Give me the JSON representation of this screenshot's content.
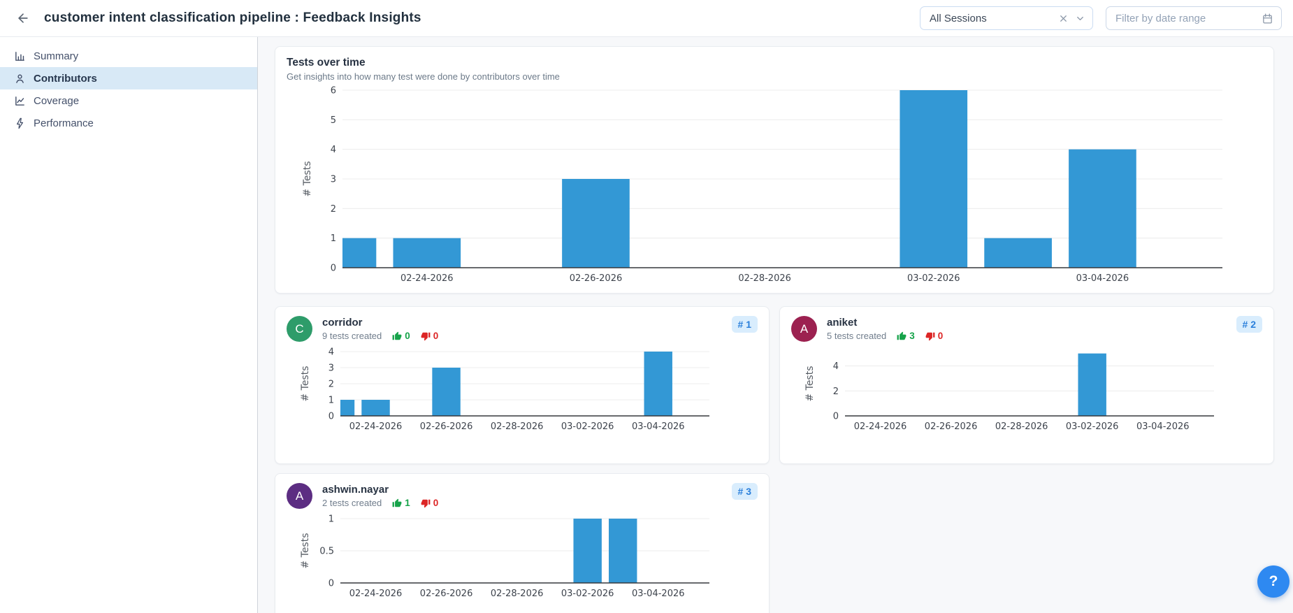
{
  "header": {
    "title": "customer intent classification pipeline : Feedback Insights",
    "session_filter": {
      "value": "All Sessions"
    },
    "date_filter": {
      "placeholder": "Filter by date range"
    }
  },
  "sidebar": {
    "items": [
      {
        "label": "Summary",
        "icon": "bar-chart"
      },
      {
        "label": "Contributors",
        "icon": "person",
        "active": true
      },
      {
        "label": "Coverage",
        "icon": "line-chart"
      },
      {
        "label": "Performance",
        "icon": "lightning"
      }
    ]
  },
  "main_card": {
    "title": "Tests over time",
    "subtitle": "Get insights into how many test were done by contributors over time"
  },
  "contributors": [
    {
      "initial": "C",
      "avatar_color": "#2e9c6a",
      "name": "corridor",
      "tests_created_label": "9 tests created",
      "thumbs_up": "0",
      "thumbs_down": "0",
      "rank_label": "# 1"
    },
    {
      "initial": "A",
      "avatar_color": "#9c2150",
      "name": "aniket",
      "tests_created_label": "5 tests created",
      "thumbs_up": "3",
      "thumbs_down": "0",
      "rank_label": "# 2"
    },
    {
      "initial": "A",
      "avatar_color": "#5c2d82",
      "name": "ashwin.nayar",
      "tests_created_label": "2 tests created",
      "thumbs_up": "1",
      "thumbs_down": "0",
      "rank_label": "# 3"
    }
  ],
  "help_button": {
    "label": "?"
  },
  "chart_data": [
    {
      "id": "tests-over-time",
      "type": "bar",
      "title": "Tests over time",
      "xlabel": "",
      "ylabel": "# Tests",
      "ylim": [
        0,
        6
      ],
      "yticks": [
        0,
        1,
        2,
        3,
        4,
        5,
        6
      ],
      "grid": true,
      "legend_position": "none",
      "bar_color": "#3398d5",
      "x_domain_days": [
        0,
        10.42
      ],
      "x_tick_labels": [
        "02-24-2026",
        "02-26-2026",
        "02-28-2026",
        "03-02-2026",
        "03-04-2026"
      ],
      "x_tick_days": [
        1,
        3,
        5,
        7,
        9
      ],
      "bars": [
        {
          "date": "02-23-2026",
          "day": 0,
          "value": 1
        },
        {
          "date": "02-24-2026",
          "day": 1,
          "value": 1
        },
        {
          "date": "02-26-2026",
          "day": 3,
          "value": 3
        },
        {
          "date": "03-02-2026",
          "day": 7,
          "value": 6
        },
        {
          "date": "03-03-2026",
          "day": 8,
          "value": 1
        },
        {
          "date": "03-04-2026",
          "day": 9,
          "value": 4
        }
      ]
    },
    {
      "id": "corridor-tests",
      "type": "bar",
      "title": "corridor tests over time",
      "xlabel": "",
      "ylabel": "# Tests",
      "ylim": [
        0,
        4
      ],
      "yticks": [
        0,
        1,
        2,
        3,
        4
      ],
      "grid": true,
      "legend_position": "none",
      "bar_color": "#3398d5",
      "x_domain_days": [
        0,
        10.45
      ],
      "x_tick_labels": [
        "02-24-2026",
        "02-26-2026",
        "02-28-2026",
        "03-02-2026",
        "03-04-2026"
      ],
      "x_tick_days": [
        1,
        3,
        5,
        7,
        9
      ],
      "bars": [
        {
          "date": "02-23-2026",
          "day": 0,
          "value": 1
        },
        {
          "date": "02-24-2026",
          "day": 1,
          "value": 1
        },
        {
          "date": "02-26-2026",
          "day": 3,
          "value": 3
        },
        {
          "date": "03-04-2026",
          "day": 9,
          "value": 4
        }
      ]
    },
    {
      "id": "aniket-tests",
      "type": "bar",
      "title": "aniket tests over time",
      "xlabel": "",
      "ylabel": "# Tests",
      "ylim": [
        0,
        5.15
      ],
      "yticks": [
        0,
        2,
        4
      ],
      "grid": true,
      "legend_position": "none",
      "bar_color": "#3398d5",
      "x_domain_days": [
        0,
        10.45
      ],
      "x_tick_labels": [
        "02-24-2026",
        "02-26-2026",
        "02-28-2026",
        "03-02-2026",
        "03-04-2026"
      ],
      "x_tick_days": [
        1,
        3,
        5,
        7,
        9
      ],
      "bars": [
        {
          "date": "03-02-2026",
          "day": 7,
          "value": 5
        }
      ]
    },
    {
      "id": "ashwin-nayar-tests",
      "type": "bar",
      "title": "ashwin.nayar tests over time",
      "xlabel": "",
      "ylabel": "# Tests",
      "ylim": [
        0,
        1
      ],
      "yticks": [
        0,
        0.5,
        1
      ],
      "grid": true,
      "legend_position": "none",
      "bar_color": "#3398d5",
      "x_domain_days": [
        0,
        10.45
      ],
      "x_tick_labels": [
        "02-24-2026",
        "02-26-2026",
        "02-28-2026",
        "03-02-2026",
        "03-04-2026"
      ],
      "x_tick_days": [
        1,
        3,
        5,
        7,
        9
      ],
      "bars": [
        {
          "date": "03-02-2026",
          "day": 7,
          "value": 1
        },
        {
          "date": "03-03-2026",
          "day": 8,
          "value": 1
        }
      ]
    }
  ]
}
